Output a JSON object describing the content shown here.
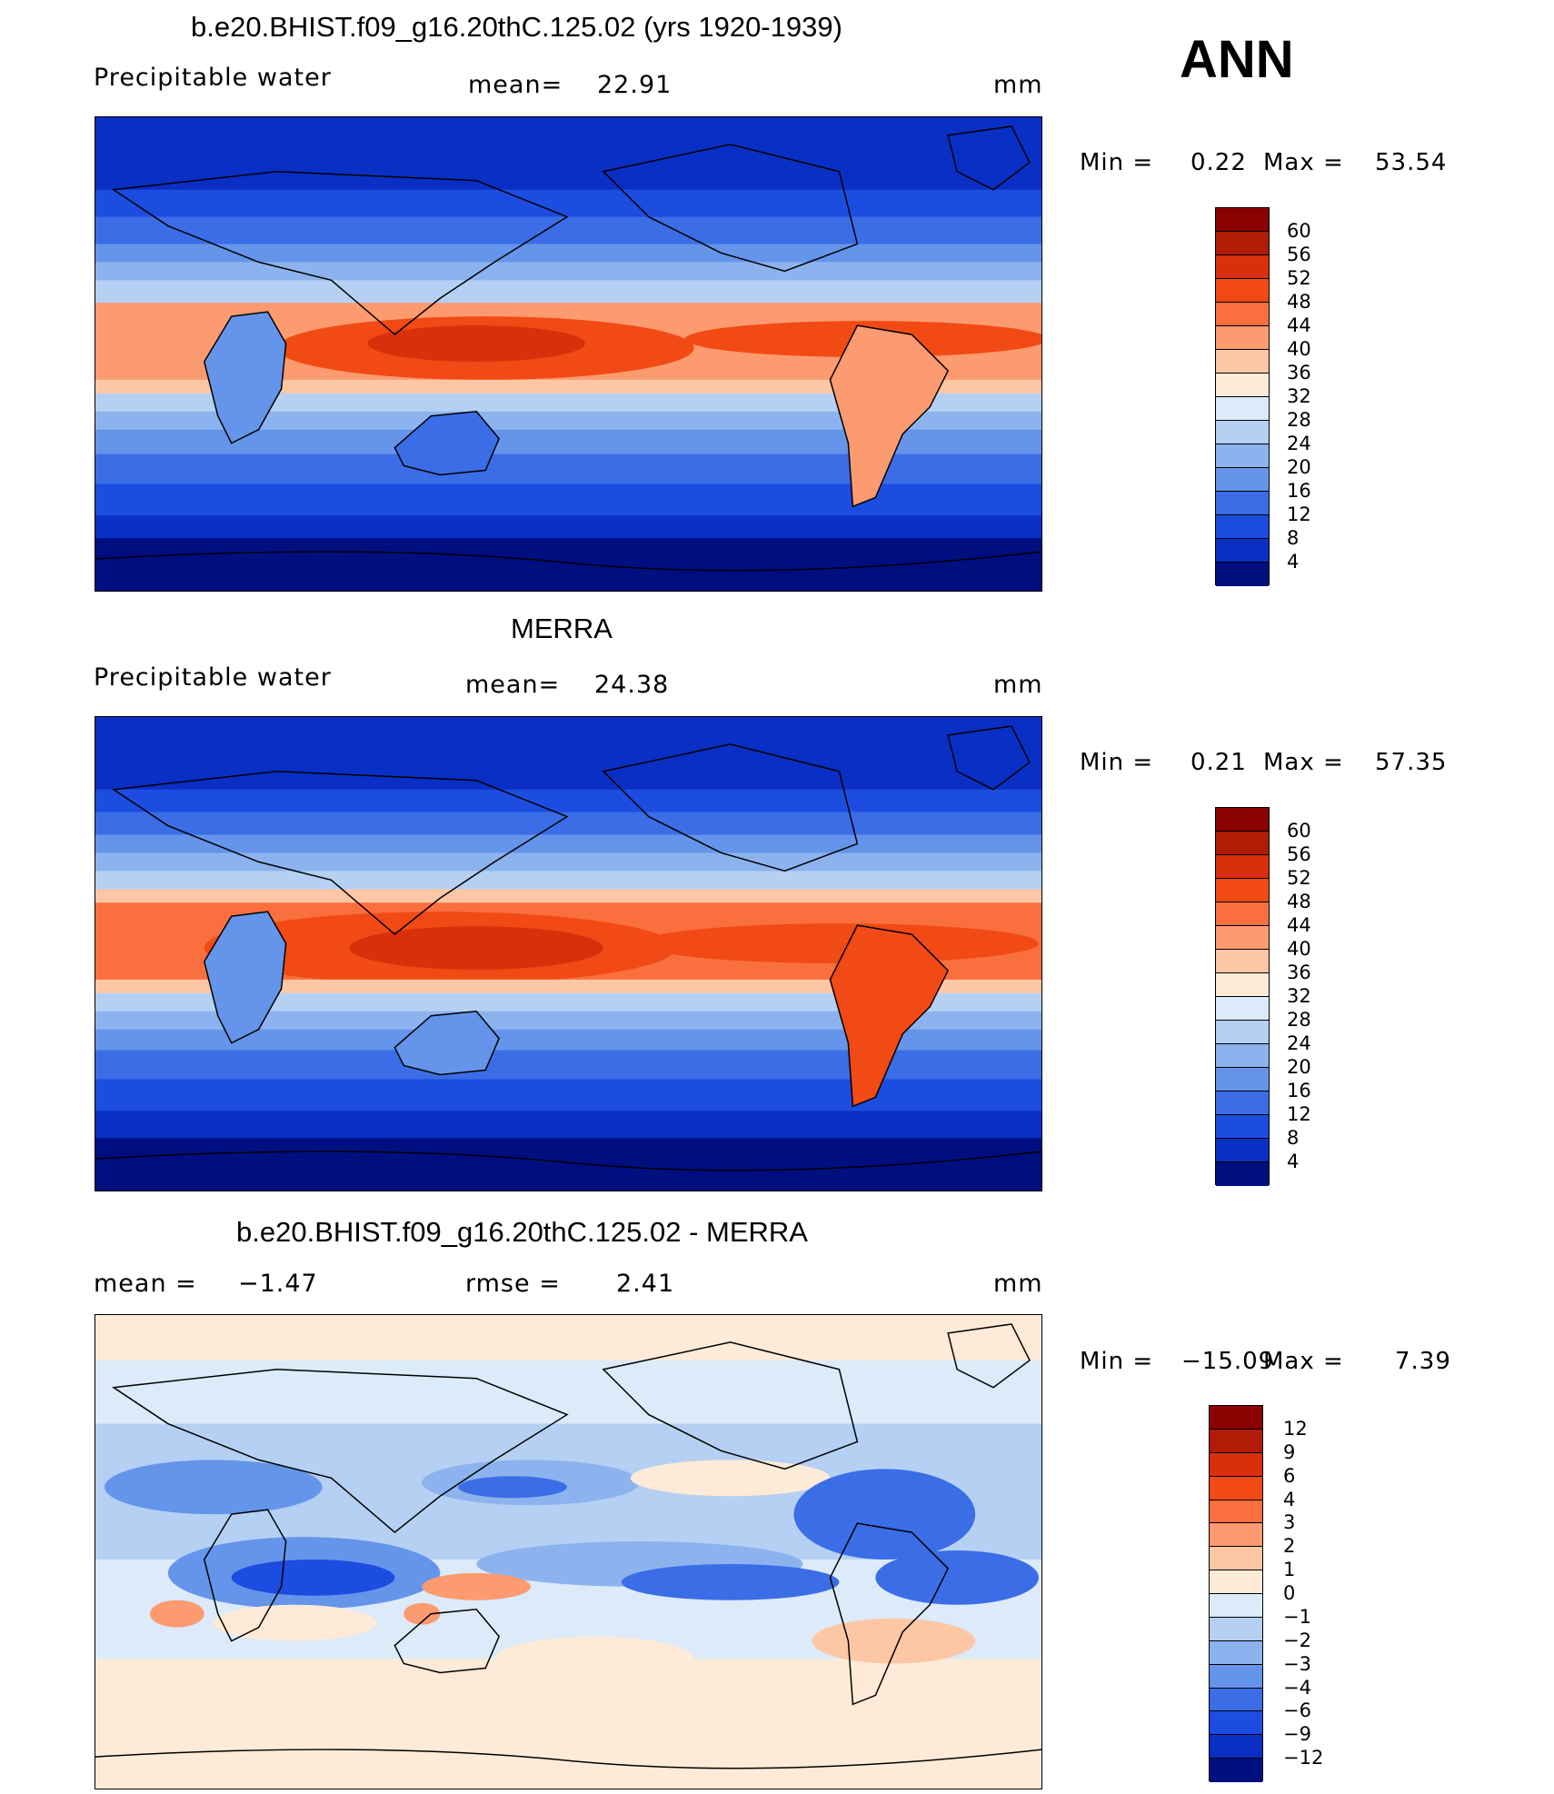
{
  "season": "ANN",
  "panels": [
    {
      "title": "b.e20.BHIST.f09_g16.20thC.125.02 (yrs 1920-1939)",
      "left_label": "Precipitable  water",
      "mid_label": "mean=",
      "mid_value": "22.91",
      "units": "mm",
      "min_label": "Min  =",
      "min_value": "0.22",
      "max_label": "Max  =",
      "max_value": "53.54"
    },
    {
      "title": "MERRA",
      "left_label": "Precipitable  water",
      "mid_label": "mean=",
      "mid_value": "24.38",
      "units": "mm",
      "min_label": "Min  =",
      "min_value": "0.21",
      "max_label": "Max  =",
      "max_value": "57.35"
    },
    {
      "title": "b.e20.BHIST.f09_g16.20thC.125.02 - MERRA",
      "left_label": "mean  =",
      "left_value": "−1.47",
      "mid_label": "rmse  =",
      "mid_value": "2.41",
      "units": "mm",
      "min_label": "Min  =",
      "min_value": "−15.09",
      "max_label": "Max  =",
      "max_value": "7.39"
    }
  ],
  "colorbars": {
    "field": {
      "labels": [
        "60",
        "56",
        "52",
        "48",
        "44",
        "40",
        "36",
        "32",
        "28",
        "24",
        "20",
        "16",
        "12",
        "8",
        "4"
      ],
      "colors": [
        "#8b0000",
        "#b01c05",
        "#d8300a",
        "#f24a14",
        "#fa6f3e",
        "#fc9a70",
        "#fdc7a6",
        "#fdebd7",
        "#dceaf9",
        "#b5d0f3",
        "#8cb3ee",
        "#6495ea",
        "#3b6de6",
        "#1c4de0",
        "#0a2fc4",
        "#000f80"
      ]
    },
    "diff": {
      "labels": [
        "12",
        "9",
        "6",
        "4",
        "3",
        "2",
        "1",
        "0",
        "−1",
        "−2",
        "−3",
        "−4",
        "−6",
        "−9",
        "−12"
      ],
      "colors": [
        "#8b0000",
        "#b01c05",
        "#d8300a",
        "#f24a14",
        "#fa6f3e",
        "#fc9a70",
        "#fdc7a6",
        "#fdebd7",
        "#dceaf9",
        "#b5d0f3",
        "#8cb3ee",
        "#6495ea",
        "#3b6de6",
        "#1c4de0",
        "#0a2fc4",
        "#000f80"
      ]
    }
  }
}
